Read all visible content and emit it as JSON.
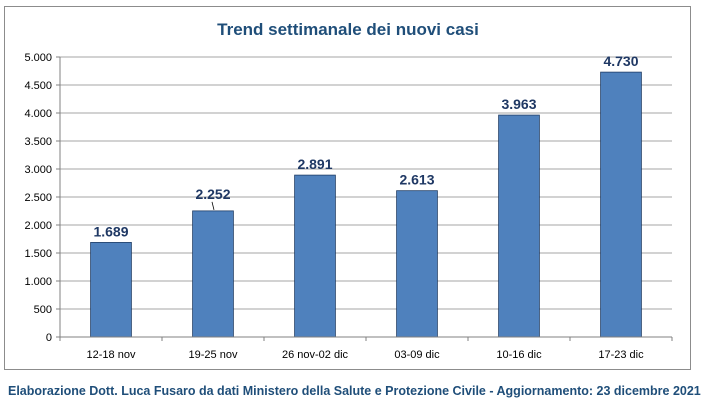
{
  "chart_data": {
    "type": "bar",
    "title": "Trend settimanale dei nuovi casi",
    "categories": [
      "12-18 nov",
      "19-25 nov",
      "26 nov-02 dic",
      "03-09 dic",
      "10-16 dic",
      "17-23 dic"
    ],
    "values": [
      1689,
      2252,
      2891,
      2613,
      3963,
      4730
    ],
    "value_labels": [
      "1.689",
      "2.252",
      "2.891",
      "2.613",
      "3.963",
      "4.730"
    ],
    "yticks": [
      0,
      500,
      1000,
      1500,
      2000,
      2500,
      3000,
      3500,
      4000,
      4500,
      5000
    ],
    "ytick_labels": [
      "0",
      "500",
      "1.000",
      "1.500",
      "2.000",
      "2.500",
      "3.000",
      "3.500",
      "4.000",
      "4.500",
      "5.000"
    ],
    "ylim": [
      0,
      5000
    ],
    "xlabel": "",
    "ylabel": "",
    "grid": true,
    "legend": "none",
    "colors": {
      "bar": "#4f81bd",
      "bar_edge": "#1f3d66",
      "title": "#1f4e79",
      "label": "#1f3864",
      "grid": "#a6a6a6"
    }
  },
  "caption": "Elaborazione Dott. Luca Fusaro da dati Ministero della Salute e Protezione Civile - Aggiornamento: 23 dicembre 2021"
}
